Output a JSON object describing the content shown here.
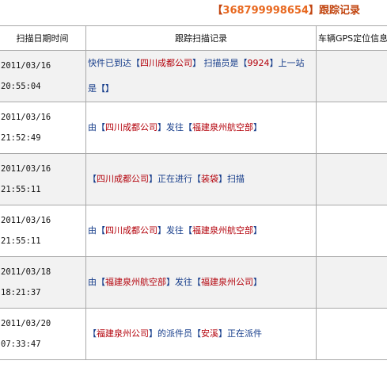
{
  "header": {
    "prefix": "【",
    "waybill_number": "368799998654",
    "suffix": "】",
    "title": "跟踪记录"
  },
  "table": {
    "columns": [
      "扫描日期时间",
      "跟踪扫描记录",
      "车辆GPS定位信息"
    ],
    "rows": [
      {
        "date": "2011/03/16",
        "time": "20:55:04",
        "parts": [
          {
            "t": "快件已到达",
            "hl": false
          },
          {
            "t": "【",
            "hl": false
          },
          {
            "t": "四川成都公司",
            "hl": true
          },
          {
            "t": "】 扫描员是",
            "hl": false
          },
          {
            "t": "【",
            "hl": false
          },
          {
            "t": "9924",
            "hl": true
          },
          {
            "t": "】上一站是",
            "hl": false
          },
          {
            "t": "【",
            "hl": false
          },
          {
            "t": "",
            "hl": true
          },
          {
            "t": "】",
            "hl": false
          }
        ],
        "gps": ""
      },
      {
        "date": "2011/03/16",
        "time": "21:52:49",
        "parts": [
          {
            "t": "由",
            "hl": false
          },
          {
            "t": "【",
            "hl": false
          },
          {
            "t": "四川成都公司",
            "hl": true
          },
          {
            "t": "】发往",
            "hl": false
          },
          {
            "t": "【",
            "hl": false
          },
          {
            "t": "福建泉州航空部",
            "hl": true
          },
          {
            "t": "】",
            "hl": false
          }
        ],
        "gps": ""
      },
      {
        "date": "2011/03/16",
        "time": "21:55:11",
        "parts": [
          {
            "t": "【",
            "hl": false
          },
          {
            "t": "四川成都公司",
            "hl": true
          },
          {
            "t": "】正在进行",
            "hl": false
          },
          {
            "t": "【",
            "hl": false
          },
          {
            "t": "装袋",
            "hl": true
          },
          {
            "t": "】扫描",
            "hl": false
          }
        ],
        "gps": ""
      },
      {
        "date": "2011/03/16",
        "time": "21:55:11",
        "parts": [
          {
            "t": "由",
            "hl": false
          },
          {
            "t": "【",
            "hl": false
          },
          {
            "t": "四川成都公司",
            "hl": true
          },
          {
            "t": "】发往",
            "hl": false
          },
          {
            "t": "【",
            "hl": false
          },
          {
            "t": "福建泉州航空部",
            "hl": true
          },
          {
            "t": "】",
            "hl": false
          }
        ],
        "gps": ""
      },
      {
        "date": "2011/03/18",
        "time": "18:21:37",
        "parts": [
          {
            "t": "由",
            "hl": false
          },
          {
            "t": "【",
            "hl": false
          },
          {
            "t": "福建泉州航空部",
            "hl": true
          },
          {
            "t": "】发往",
            "hl": false
          },
          {
            "t": "【",
            "hl": false
          },
          {
            "t": "福建泉州公司",
            "hl": true
          },
          {
            "t": "】",
            "hl": false
          }
        ],
        "gps": ""
      },
      {
        "date": "2011/03/20",
        "time": "07:33:47",
        "parts": [
          {
            "t": "【",
            "hl": false
          },
          {
            "t": "福建泉州公司",
            "hl": true
          },
          {
            "t": "】的派件员",
            "hl": false
          },
          {
            "t": "【",
            "hl": false
          },
          {
            "t": "安溪",
            "hl": true
          },
          {
            "t": "】正在派件",
            "hl": false
          }
        ],
        "gps": ""
      }
    ]
  },
  "colors": {
    "title": "#c1440e",
    "number": "#e8681f",
    "highlight": "#b3000a",
    "text": "#153c8a",
    "stripe": "#f2f2f2",
    "border": "#a9a9a9"
  }
}
